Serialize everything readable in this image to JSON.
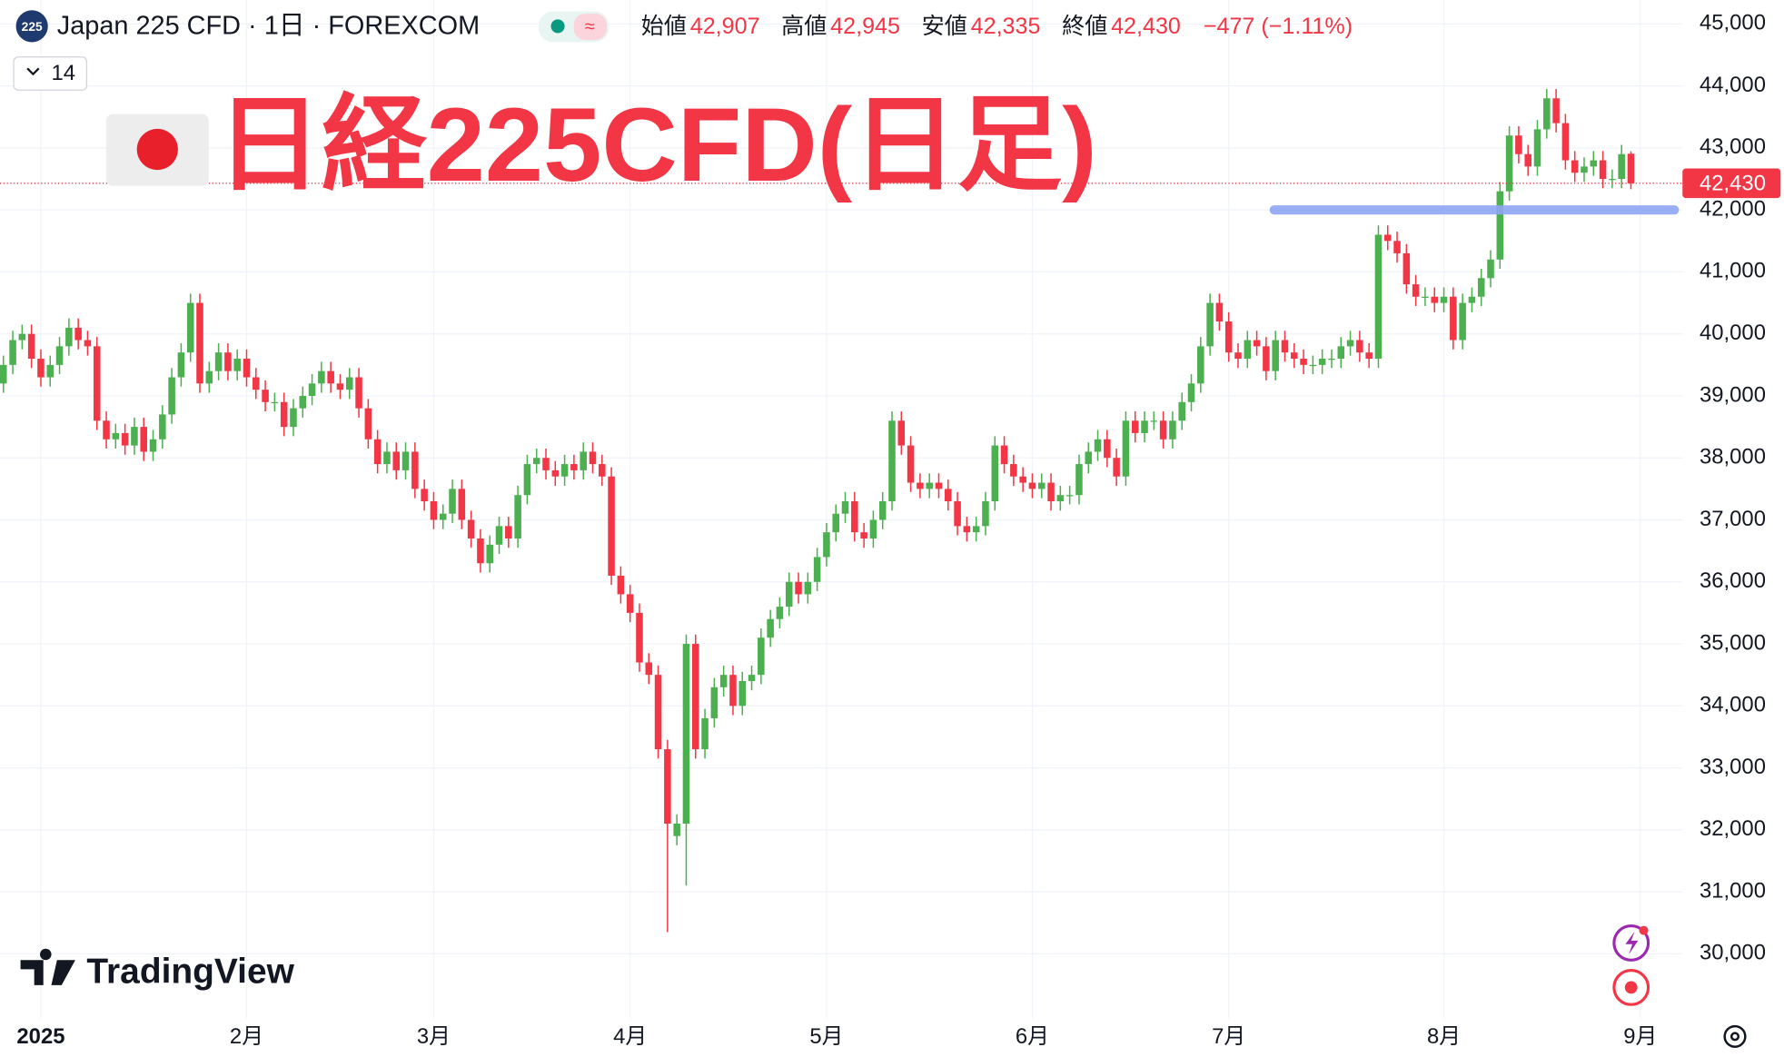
{
  "chart_data": {
    "type": "candlestick",
    "symbol_badge": "225",
    "symbol": "Japan 225 CFD · 1日 · FOREXCOM",
    "interval_button": "14",
    "legend": [
      {
        "label": "始値",
        "value": "42,907"
      },
      {
        "label": "高値",
        "value": "42,945"
      },
      {
        "label": "安値",
        "value": "42,335"
      },
      {
        "label": "終値",
        "value": "42,430"
      }
    ],
    "change": "−477 (−1.11%)",
    "title": "日経225CFD(日足)",
    "logo": "TradingView",
    "up_color": "#4caf50",
    "down_color": "#f23645",
    "categories": [
      null,
      null,
      null,
      null,
      "2025",
      null,
      null,
      null,
      null,
      null,
      null,
      null,
      null,
      null,
      null,
      null,
      null,
      null,
      null,
      null,
      null,
      null,
      null,
      null,
      null,
      null,
      "2月",
      null,
      null,
      null,
      null,
      null,
      null,
      null,
      null,
      null,
      null,
      null,
      null,
      null,
      null,
      null,
      null,
      null,
      null,
      null,
      "3月",
      null,
      null,
      null,
      null,
      null,
      null,
      null,
      null,
      null,
      null,
      null,
      null,
      null,
      null,
      null,
      null,
      null,
      null,
      null,
      null,
      "4月",
      null,
      null,
      null,
      null,
      null,
      null,
      null,
      null,
      null,
      null,
      null,
      null,
      null,
      null,
      null,
      null,
      null,
      null,
      null,
      null,
      "5月",
      null,
      null,
      null,
      null,
      null,
      null,
      null,
      null,
      null,
      null,
      null,
      null,
      null,
      null,
      null,
      null,
      null,
      null,
      null,
      null,
      null,
      "6月",
      null,
      null,
      null,
      null,
      null,
      null,
      null,
      null,
      null,
      null,
      null,
      null,
      null,
      null,
      null,
      null,
      null,
      null,
      null,
      null,
      "7月",
      null,
      null,
      null,
      null,
      null,
      null,
      null,
      null,
      null,
      null,
      null,
      null,
      null,
      null,
      null,
      null,
      null,
      null,
      null,
      null,
      null,
      null,
      "8月",
      null,
      null,
      null,
      null,
      null,
      null,
      null,
      null,
      null,
      null,
      null,
      null,
      null,
      null,
      null,
      null,
      null,
      null,
      null,
      null,
      "9月"
    ],
    "open": [
      39200,
      39500,
      39900,
      40000,
      39600,
      39300,
      39500,
      39800,
      40100,
      39900,
      39800,
      38600,
      38300,
      38400,
      38200,
      38500,
      38100,
      38300,
      38700,
      39300,
      39700,
      40500,
      39200,
      39400,
      39700,
      39400,
      39600,
      39300,
      39100,
      38900,
      38900,
      38500,
      38800,
      39000,
      39200,
      39400,
      39200,
      39100,
      39300,
      38800,
      38300,
      37900,
      38100,
      37800,
      38100,
      37500,
      37300,
      37000,
      37100,
      37500,
      37000,
      36700,
      36300,
      36600,
      36900,
      36700,
      37400,
      37900,
      38000,
      37800,
      37700,
      37900,
      37800,
      38100,
      37900,
      37700,
      36100,
      35800,
      35500,
      34700,
      34500,
      33300,
      31900,
      32100,
      35000,
      33300,
      33800,
      34300,
      34500,
      34000,
      34400,
      34500,
      35100,
      35400,
      35600,
      36000,
      35800,
      36000,
      36400,
      36800,
      37100,
      37300,
      36800,
      36700,
      37000,
      37300,
      38600,
      38200,
      37600,
      37500,
      37600,
      37500,
      37300,
      36900,
      36800,
      36900,
      37300,
      38200,
      37900,
      37700,
      37600,
      37500,
      37600,
      37300,
      37400,
      37400,
      37900,
      38100,
      38300,
      38000,
      37700,
      38600,
      38400,
      38600,
      38600,
      38300,
      38600,
      38900,
      39200,
      39800,
      40500,
      40200,
      39700,
      39600,
      39900,
      39800,
      39400,
      39900,
      39700,
      39600,
      39500,
      39500,
      39600,
      39600,
      39800,
      39900,
      39700,
      39600,
      41600,
      41500,
      41300,
      40800,
      40600,
      40600,
      40500,
      40600,
      39900,
      40500,
      40600,
      40900,
      41200,
      42300,
      43200,
      42900,
      42700,
      43300,
      43800,
      43400,
      42800,
      42600,
      42700,
      42800,
      42500,
      42500,
      42907,
      null
    ],
    "high": [
      39650,
      40050,
      40150,
      40150,
      39750,
      39650,
      39950,
      40250,
      40250,
      40050,
      39950,
      38750,
      38550,
      38550,
      38650,
      38650,
      38450,
      38850,
      39450,
      39850,
      40650,
      40650,
      39550,
      39850,
      39850,
      39750,
      39750,
      39450,
      39250,
      39050,
      39050,
      38950,
      39150,
      39350,
      39550,
      39550,
      39350,
      39450,
      39450,
      38950,
      38450,
      38250,
      38250,
      38250,
      38250,
      37650,
      37450,
      37250,
      37650,
      37650,
      37150,
      36850,
      36750,
      37050,
      37050,
      37550,
      38050,
      38150,
      38150,
      37950,
      38050,
      38050,
      38250,
      38250,
      38050,
      37850,
      36250,
      35950,
      35650,
      34850,
      34650,
      33450,
      32250,
      35150,
      35150,
      33950,
      34450,
      34650,
      34650,
      34550,
      34650,
      35250,
      35550,
      35750,
      36150,
      36150,
      36150,
      36550,
      36950,
      37250,
      37450,
      37450,
      36950,
      37150,
      37450,
      38750,
      38750,
      38350,
      37750,
      37750,
      37750,
      37650,
      37450,
      37050,
      37050,
      37450,
      38350,
      38350,
      38050,
      37850,
      37750,
      37750,
      37750,
      37550,
      37550,
      38050,
      38250,
      38450,
      38450,
      38150,
      38750,
      38750,
      38750,
      38750,
      38750,
      38750,
      39050,
      39350,
      39950,
      40650,
      40650,
      40350,
      39850,
      40050,
      40050,
      39950,
      40050,
      40050,
      39850,
      39750,
      39650,
      39750,
      39750,
      39950,
      40050,
      40050,
      39850,
      41750,
      41750,
      41650,
      41450,
      40950,
      40750,
      40750,
      40750,
      40750,
      40650,
      40750,
      41050,
      41350,
      42450,
      43350,
      43350,
      43050,
      43450,
      43950,
      43950,
      43550,
      42950,
      42850,
      42950,
      42950,
      42650,
      43050,
      42945,
      null
    ],
    "low": [
      39050,
      39350,
      39750,
      39450,
      39150,
      39150,
      39350,
      39650,
      39750,
      39650,
      38450,
      38150,
      38150,
      38050,
      38050,
      37950,
      37950,
      38150,
      38550,
      39150,
      39550,
      39050,
      39050,
      39250,
      39250,
      39250,
      39150,
      38950,
      38750,
      38750,
      38350,
      38350,
      38650,
      38850,
      39050,
      39050,
      38950,
      38950,
      38650,
      38150,
      37750,
      37750,
      37650,
      37650,
      37350,
      37150,
      36850,
      36850,
      36950,
      36850,
      36550,
      36150,
      36150,
      36450,
      36550,
      36550,
      37250,
      37750,
      37650,
      37550,
      37550,
      37650,
      37650,
      37750,
      37550,
      35950,
      35650,
      35350,
      34550,
      34350,
      33150,
      30350,
      31750,
      31100,
      33150,
      33150,
      33650,
      34150,
      33850,
      33850,
      34250,
      34350,
      34950,
      35250,
      35450,
      35650,
      35650,
      35850,
      36250,
      36650,
      36950,
      36650,
      36550,
      36550,
      36850,
      37150,
      38050,
      37450,
      37350,
      37350,
      37350,
      37150,
      36750,
      36650,
      36650,
      36750,
      37150,
      37750,
      37550,
      37450,
      37350,
      37350,
      37150,
      37150,
      37250,
      37250,
      37750,
      37950,
      37850,
      37550,
      37550,
      38250,
      38250,
      38450,
      38150,
      38150,
      38450,
      38750,
      39050,
      39650,
      40050,
      39550,
      39450,
      39450,
      39650,
      39250,
      39250,
      39550,
      39450,
      39350,
      39350,
      39350,
      39450,
      39450,
      39650,
      39550,
      39450,
      39450,
      41350,
      41150,
      40650,
      40450,
      40450,
      40350,
      40350,
      39750,
      39750,
      40350,
      40450,
      40750,
      41050,
      42150,
      42750,
      42550,
      42550,
      43150,
      43250,
      42650,
      42450,
      42450,
      42550,
      42350,
      42350,
      42350,
      42335,
      null
    ],
    "close": [
      39500,
      39900,
      40000,
      39600,
      39300,
      39500,
      39800,
      40100,
      39900,
      39800,
      38600,
      38300,
      38400,
      38200,
      38500,
      38100,
      38300,
      38700,
      39300,
      39700,
      40500,
      39200,
      39400,
      39700,
      39400,
      39600,
      39300,
      39100,
      38900,
      38900,
      38500,
      38800,
      39000,
      39200,
      39400,
      39200,
      39100,
      39300,
      38800,
      38300,
      37900,
      38100,
      37800,
      38100,
      37500,
      37300,
      37000,
      37100,
      37500,
      37000,
      36700,
      36300,
      36600,
      36900,
      36700,
      37400,
      37900,
      38000,
      37800,
      37700,
      37900,
      37800,
      38100,
      37900,
      37700,
      36100,
      35800,
      35500,
      34700,
      34500,
      33300,
      32100,
      32100,
      35000,
      33300,
      33800,
      34300,
      34500,
      34000,
      34400,
      34500,
      35100,
      35400,
      35600,
      36000,
      35800,
      36000,
      36400,
      36800,
      37100,
      37300,
      36800,
      36700,
      37000,
      37300,
      38600,
      38200,
      37600,
      37500,
      37600,
      37500,
      37300,
      36900,
      36800,
      36900,
      37300,
      38200,
      37900,
      37700,
      37600,
      37500,
      37600,
      37300,
      37400,
      37400,
      37900,
      38100,
      38300,
      38000,
      37700,
      38600,
      38400,
      38600,
      38600,
      38300,
      38600,
      38900,
      39200,
      39800,
      40500,
      40200,
      39700,
      39600,
      39900,
      39800,
      39400,
      39900,
      39700,
      39600,
      39500,
      39500,
      39600,
      39600,
      39800,
      39900,
      39700,
      39600,
      41600,
      41500,
      41300,
      40800,
      40600,
      40600,
      40500,
      40600,
      39900,
      40500,
      40600,
      40900,
      41200,
      42300,
      43200,
      42900,
      42700,
      43300,
      43800,
      43400,
      42800,
      42600,
      42700,
      42800,
      42500,
      42500,
      42900,
      42430,
      null
    ],
    "ylim": [
      29200,
      45000
    ],
    "yticks": [
      {
        "value": 30000,
        "label": "30,000"
      },
      {
        "value": 31000,
        "label": "31,000"
      },
      {
        "value": 32000,
        "label": "32,000"
      },
      {
        "value": 33000,
        "label": "33,000"
      },
      {
        "value": 34000,
        "label": "34,000"
      },
      {
        "value": 35000,
        "label": "35,000"
      },
      {
        "value": 36000,
        "label": "36,000"
      },
      {
        "value": 37000,
        "label": "37,000"
      },
      {
        "value": 38000,
        "label": "38,000"
      },
      {
        "value": 39000,
        "label": "39,000"
      },
      {
        "value": 40000,
        "label": "40,000"
      },
      {
        "value": 41000,
        "label": "41,000"
      },
      {
        "value": 42000,
        "label": "42,000"
      },
      {
        "value": 43000,
        "label": "43,000"
      },
      {
        "value": 44000,
        "label": "44,000"
      },
      {
        "value": 45000,
        "label": "45,000"
      }
    ],
    "last_price": {
      "value": 42430,
      "label": "42,430",
      "color": "#f23645"
    },
    "hline": {
      "value": 42000,
      "color": "#8ea6f4"
    },
    "grid": true
  }
}
